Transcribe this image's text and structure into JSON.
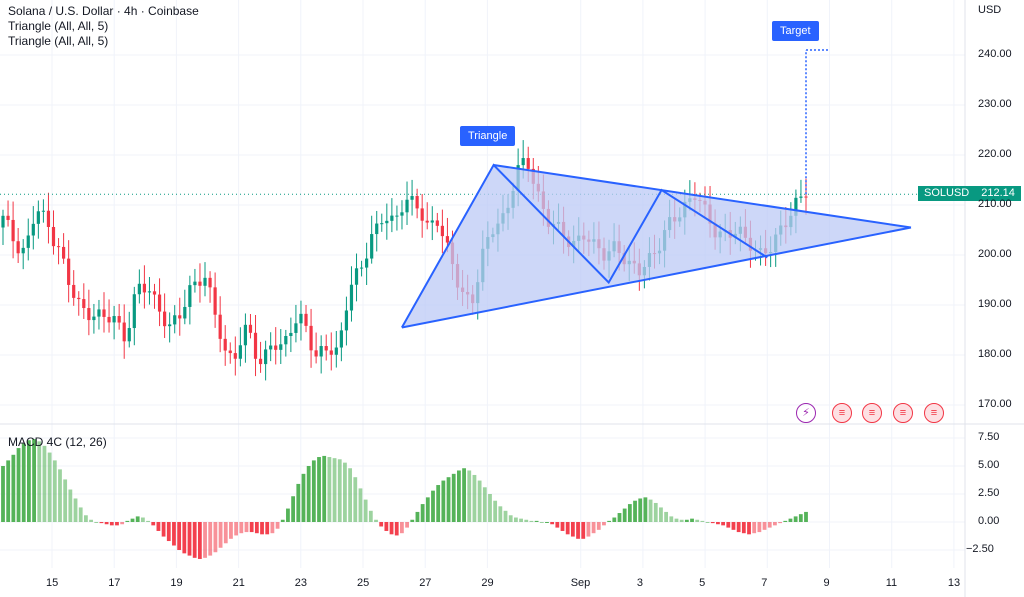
{
  "legend": {
    "title": "Solana / U.S. Dollar · 4h · Coinbase",
    "indicator1": "Triangle (All, All, 5)",
    "indicator2": "Triangle (All, All, 5)"
  },
  "currency": "USD",
  "price_tag": {
    "symbol": "SOLUSD",
    "price": "212.14"
  },
  "annotations": {
    "triangle": "Triangle",
    "target": "Target"
  },
  "macd": {
    "label": "MACD 4C (12, 26)"
  },
  "colors": {
    "up": "#089981",
    "down": "#f23645",
    "pattern_line": "#2962ff",
    "pattern_fill": "#bcc9f5",
    "macd_up": "#4caf50",
    "macd_down": "#f23645"
  },
  "icons": [
    "bolt-icon",
    "us-flag-icon",
    "us-flag-icon",
    "us-flag-icon",
    "us-flag-icon"
  ],
  "chart_data": [
    {
      "type": "candlestick",
      "title": "Solana / U.S. Dollar · 4h · Coinbase",
      "ylim": [
        166,
        248
      ],
      "y_ticks": [
        "240.00",
        "230.00",
        "220.00",
        "210.00",
        "200.00",
        "190.00",
        "180.00",
        "170.00"
      ],
      "x_ticks": [
        "15",
        "17",
        "19",
        "21",
        "23",
        "25",
        "27",
        "29",
        "Sep",
        "3",
        "5",
        "7",
        "9",
        "11",
        "13"
      ],
      "close_path": [
        207,
        203,
        201,
        209,
        206,
        202,
        193,
        189,
        189,
        187,
        187,
        184,
        193,
        193,
        190,
        185,
        188,
        195,
        196,
        188,
        180,
        181,
        185,
        178,
        183,
        180,
        187,
        188,
        178,
        182,
        181,
        192,
        197,
        204,
        207,
        206,
        212,
        210,
        205,
        208,
        200,
        192,
        191,
        200,
        205,
        208,
        217,
        218,
        212,
        207,
        204,
        202,
        205,
        201,
        200,
        203,
        197,
        197,
        200,
        202,
        207,
        210,
        212,
        208,
        205,
        204,
        204,
        203,
        200,
        201,
        207,
        210,
        212
      ],
      "last_price": 212.14,
      "triangle_pattern": {
        "points": [
          [
            "26",
            185.5
          ],
          [
            "29",
            218
          ],
          [
            "1 Sep",
            194.5
          ],
          [
            "3 Sep",
            213
          ],
          [
            "7 Sep",
            199.5
          ]
        ],
        "apex_price": 205.5,
        "target_price": 241
      }
    },
    {
      "type": "bar",
      "title": "MACD 4C (12, 26)",
      "ylim": [
        -3.5,
        7.8
      ],
      "y_ticks": [
        "7.50",
        "5.00",
        "2.50",
        "0.00",
        "−2.50"
      ],
      "values": [
        5.0,
        5.5,
        6.0,
        6.6,
        7.0,
        7.3,
        7.4,
        7.2,
        6.8,
        6.2,
        5.5,
        4.7,
        3.8,
        2.9,
        2.1,
        1.3,
        0.6,
        0.2,
        0.0,
        -0.1,
        -0.2,
        -0.3,
        -0.3,
        -0.2,
        0.1,
        0.3,
        0.5,
        0.4,
        0.1,
        -0.3,
        -0.8,
        -1.3,
        -1.7,
        -2.1,
        -2.5,
        -2.8,
        -3.0,
        -3.2,
        -3.3,
        -3.2,
        -3.0,
        -2.7,
        -2.3,
        -1.9,
        -1.5,
        -1.2,
        -1.0,
        -0.9,
        -0.9,
        -1.0,
        -1.1,
        -1.1,
        -1.0,
        -0.6,
        0.2,
        1.2,
        2.3,
        3.4,
        4.3,
        5.0,
        5.5,
        5.8,
        5.9,
        5.8,
        5.7,
        5.6,
        5.3,
        4.8,
        4.0,
        3.0,
        2.0,
        1.0,
        0.2,
        -0.4,
        -0.8,
        -1.1,
        -1.2,
        -1.0,
        -0.5,
        0.2,
        0.9,
        1.6,
        2.2,
        2.8,
        3.3,
        3.7,
        4.0,
        4.3,
        4.6,
        4.8,
        4.6,
        4.2,
        3.7,
        3.1,
        2.5,
        1.9,
        1.4,
        1.0,
        0.6,
        0.4,
        0.3,
        0.2,
        0.1,
        0.1,
        0.0,
        0.0,
        -0.2,
        -0.5,
        -0.8,
        -1.1,
        -1.3,
        -1.5,
        -1.5,
        -1.3,
        -1.0,
        -0.7,
        -0.3,
        0.1,
        0.4,
        0.8,
        1.2,
        1.6,
        1.9,
        2.1,
        2.2,
        2.0,
        1.7,
        1.3,
        0.9,
        0.5,
        0.3,
        0.2,
        0.2,
        0.3,
        0.2,
        0.1,
        0.0,
        -0.1,
        -0.2,
        -0.3,
        -0.5,
        -0.7,
        -0.9,
        -1.0,
        -1.1,
        -1.0,
        -0.9,
        -0.7,
        -0.5,
        -0.3,
        -0.1,
        0.1,
        0.3,
        0.5,
        0.7,
        0.9
      ]
    }
  ]
}
